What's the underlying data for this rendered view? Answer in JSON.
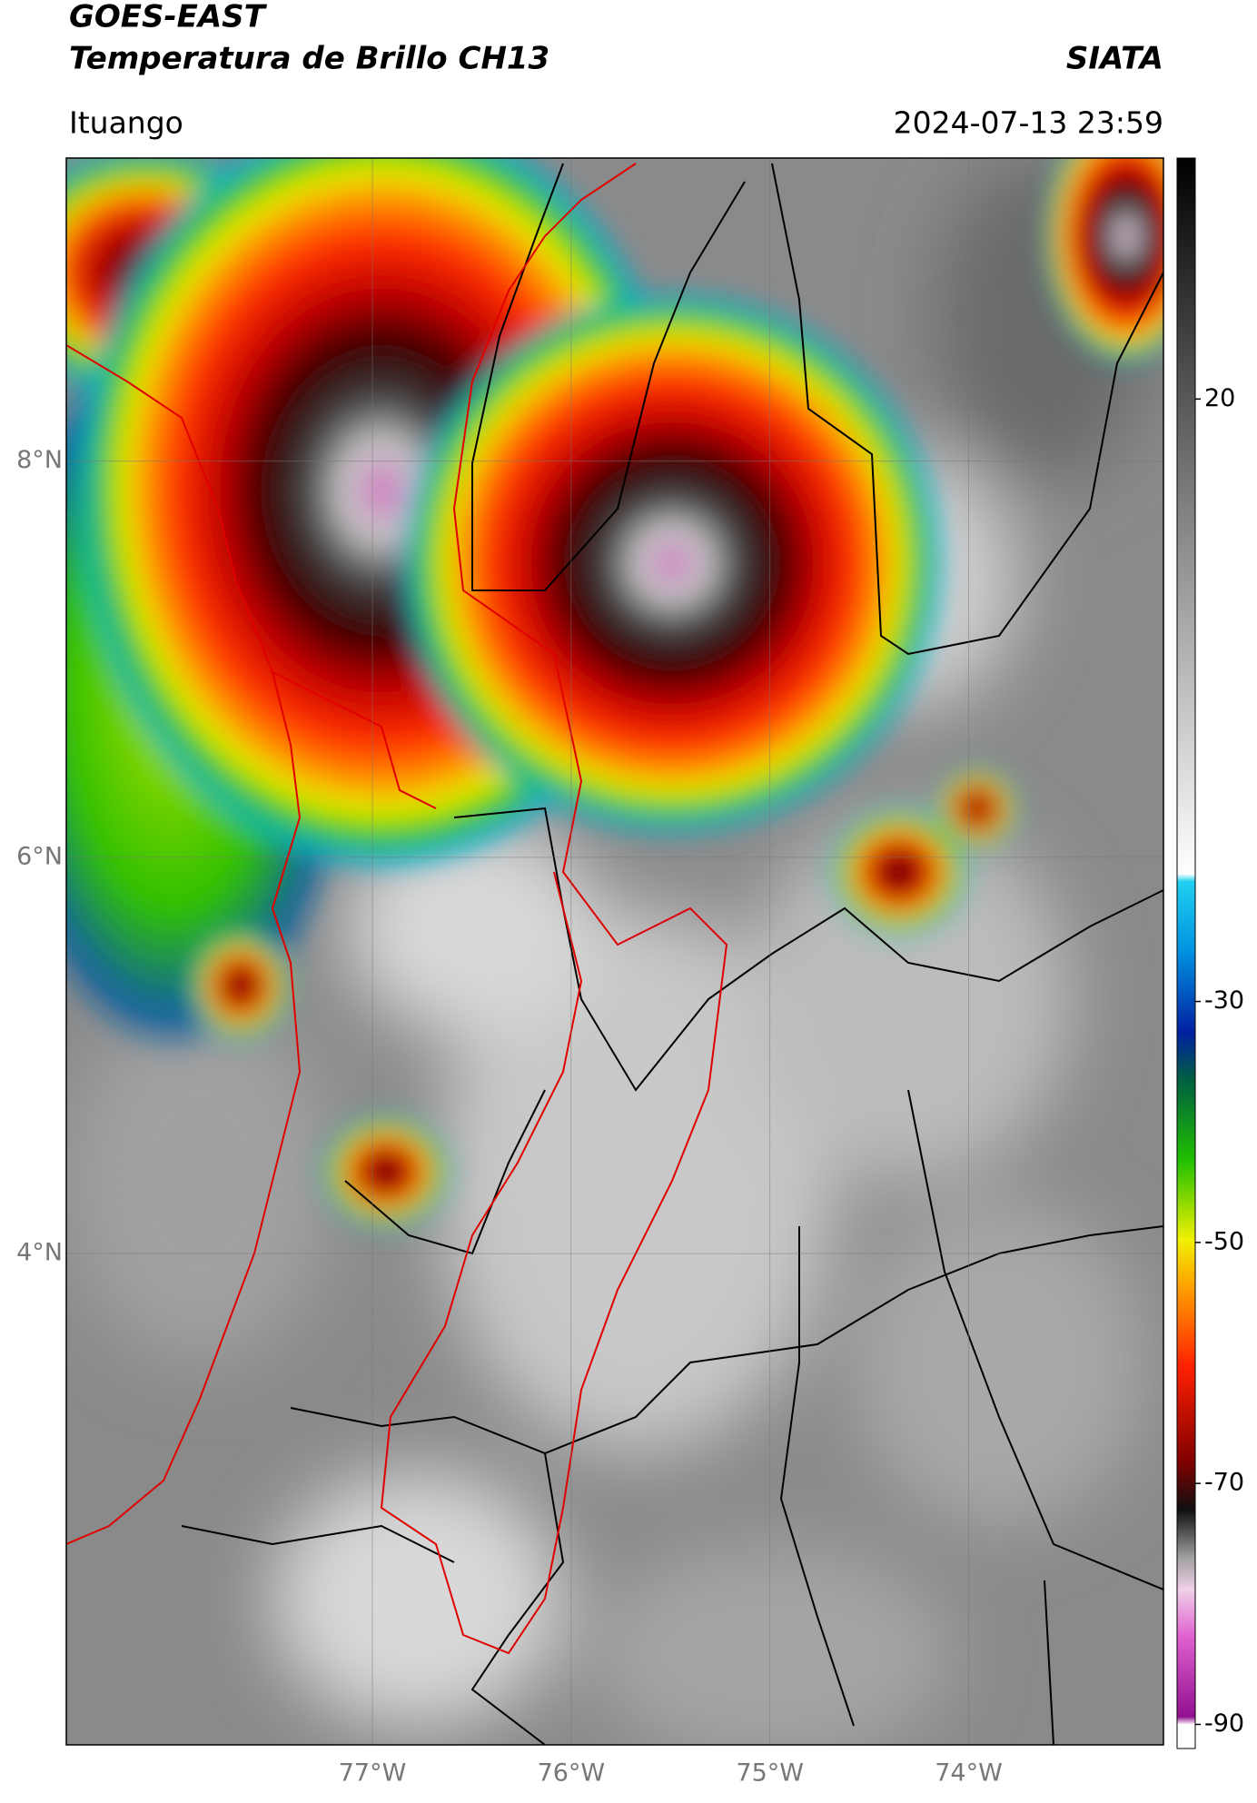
{
  "header": {
    "title_line1": "GOES-EAST",
    "title_line2": "Temperatura de Brillo CH13",
    "source": "SIATA",
    "location": "Ituango",
    "timestamp": "2024-07-13 23:59"
  },
  "map": {
    "lat_range": [
      1.52,
      9.53
    ],
    "lon_range": [
      -78.54,
      -73.02
    ],
    "lat_ticks": [
      {
        "value": 8,
        "label": "8°N"
      },
      {
        "value": 6,
        "label": "6°N"
      },
      {
        "value": 4,
        "label": "4°N"
      }
    ],
    "lon_ticks": [
      {
        "value": -77,
        "label": "77°W"
      },
      {
        "value": -76,
        "label": "76°W"
      },
      {
        "value": -75,
        "label": "75°W"
      },
      {
        "value": -74,
        "label": "74°W"
      }
    ]
  },
  "colorbar": {
    "range": [
      -92,
      40
    ],
    "ticks": [
      20,
      -30,
      -50,
      -70,
      -90
    ]
  }
}
